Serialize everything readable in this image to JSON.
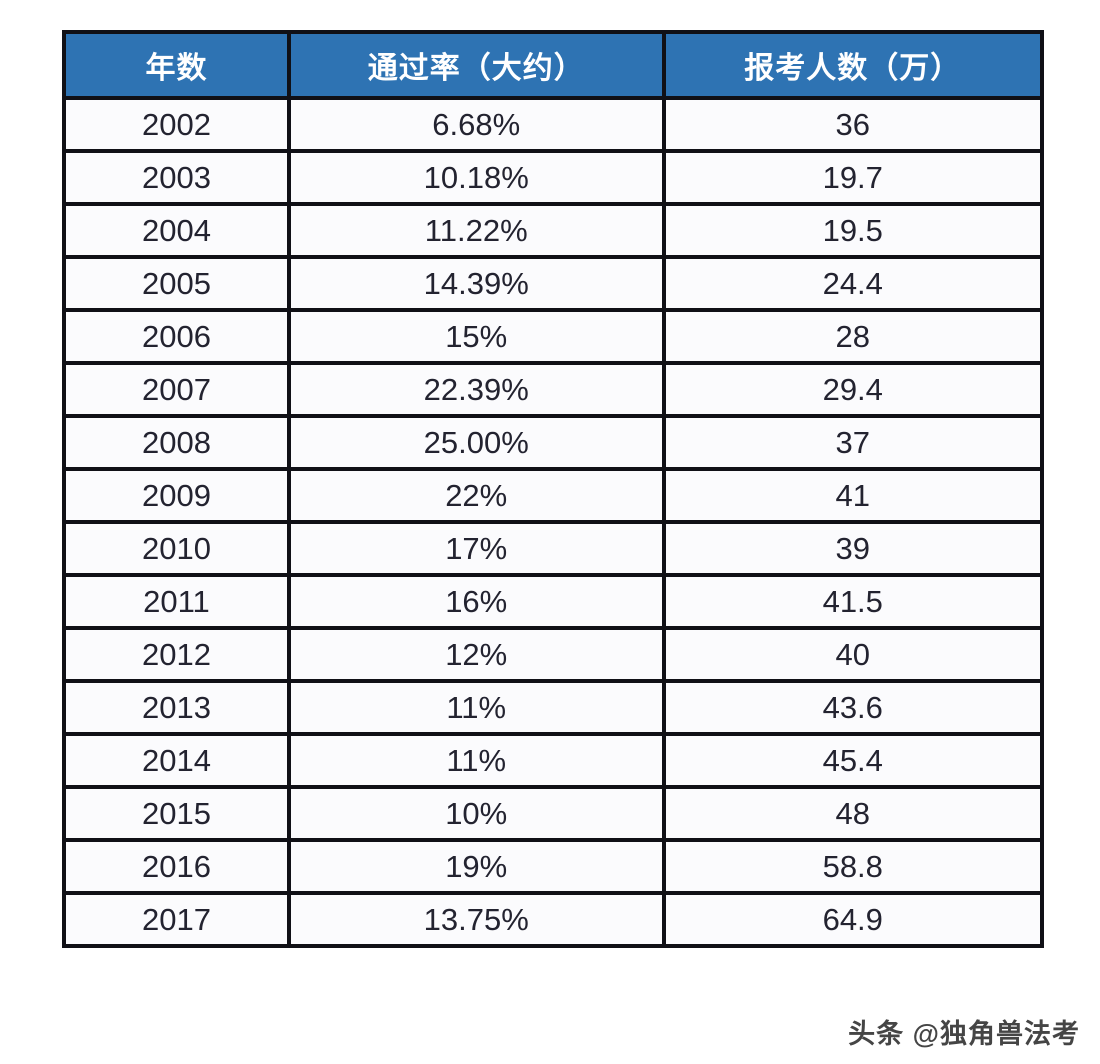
{
  "chart_data": {
    "type": "table",
    "columns": [
      "年数",
      "通过率（大约）",
      "报考人数（万）"
    ],
    "rows": [
      [
        "2002",
        "6.68%",
        "36"
      ],
      [
        "2003",
        "10.18%",
        "19.7"
      ],
      [
        "2004",
        "11.22%",
        "19.5"
      ],
      [
        "2005",
        "14.39%",
        "24.4"
      ],
      [
        "2006",
        "15%",
        "28"
      ],
      [
        "2007",
        "22.39%",
        "29.4"
      ],
      [
        "2008",
        "25.00%",
        "37"
      ],
      [
        "2009",
        "22%",
        "41"
      ],
      [
        "2010",
        "17%",
        "39"
      ],
      [
        "2011",
        "16%",
        "41.5"
      ],
      [
        "2012",
        "12%",
        "40"
      ],
      [
        "2013",
        "11%",
        "43.6"
      ],
      [
        "2014",
        "11%",
        "45.4"
      ],
      [
        "2015",
        "10%",
        "48"
      ],
      [
        "2016",
        "19%",
        "58.8"
      ],
      [
        "2017",
        "13.75%",
        "64.9"
      ]
    ],
    "layout": {
      "grid": "black 4px borders on all cells",
      "header_position": "top row"
    }
  },
  "watermark": {
    "text": "头条 @独角兽法考"
  },
  "colors": {
    "header_bg": "#2e73b3",
    "header_text": "#ffffff",
    "border": "#101016",
    "cell_bg": "#fbfbfd",
    "body_text": "#232330",
    "watermark_text": "#454545",
    "page_bg": "#ffffff"
  }
}
